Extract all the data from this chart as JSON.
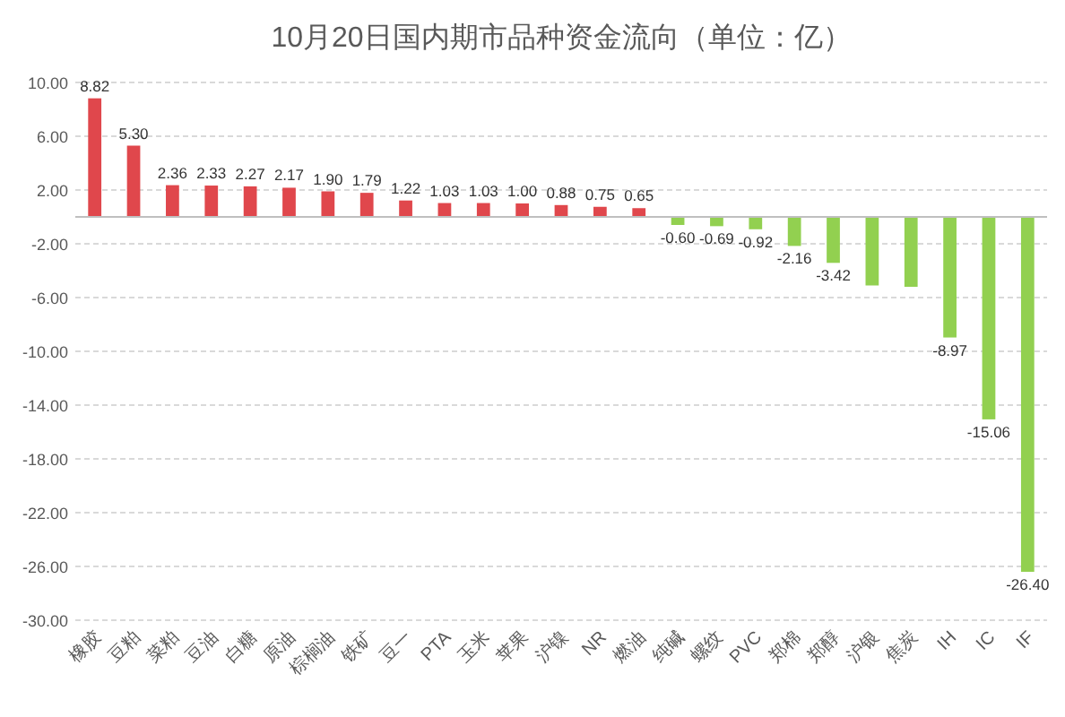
{
  "chart_data": {
    "type": "bar",
    "title": "10月20日国内期市品种资金流向（单位：亿）",
    "categories": [
      "橡胶",
      "豆粕",
      "菜粕",
      "豆油",
      "白糖",
      "原油",
      "棕榈油",
      "铁矿",
      "豆一",
      "PTA",
      "玉米",
      "苹果",
      "沪镍",
      "NR",
      "燃油",
      "纯碱",
      "螺纹",
      "PVC",
      "郑棉",
      "郑醇",
      "沪银",
      "焦炭",
      "IH",
      "IC",
      "IF"
    ],
    "values": [
      8.82,
      5.3,
      2.36,
      2.33,
      2.27,
      2.17,
      1.9,
      1.79,
      1.22,
      1.03,
      1.03,
      1.0,
      0.88,
      0.75,
      0.65,
      -0.6,
      -0.69,
      -0.92,
      -2.16,
      -3.42,
      -5.1,
      -5.2,
      -8.97,
      -15.06,
      -26.4
    ],
    "value_labels": [
      "8.82",
      "5.30",
      "2.36",
      "2.33",
      "2.27",
      "2.17",
      "1.90",
      "1.79",
      "1.22",
      "1.03",
      "1.03",
      "1.00",
      "0.88",
      "0.75",
      "0.65",
      "-0.60",
      "-0.69",
      "-0.92",
      "-2.16",
      "-3.42",
      null,
      null,
      "-8.97",
      "-15.06",
      "-26.40"
    ],
    "colors": [
      "#e0474c",
      "#e0474c",
      "#e0474c",
      "#e0474c",
      "#e0474c",
      "#e0474c",
      "#e0474c",
      "#e0474c",
      "#e0474c",
      "#e0474c",
      "#e0474c",
      "#e0474c",
      "#e0474c",
      "#e0474c",
      "#e0474c",
      "#92d050",
      "#92d050",
      "#92d050",
      "#92d050",
      "#92d050",
      "#92d050",
      "#92d050",
      "#92d050",
      "#92d050",
      "#92d050"
    ],
    "ylim": [
      -30,
      10
    ],
    "yticks": [
      {
        "value": 10,
        "label": "10.00"
      },
      {
        "value": 6,
        "label": "6.00"
      },
      {
        "value": 2,
        "label": "2.00"
      },
      {
        "value": -2,
        "label": "-2.00"
      },
      {
        "value": -6,
        "label": "-6.00"
      },
      {
        "value": -10,
        "label": "-10.00"
      },
      {
        "value": -14,
        "label": "-14.00"
      },
      {
        "value": -18,
        "label": "-18.00"
      },
      {
        "value": -22,
        "label": "-22.00"
      },
      {
        "value": -26,
        "label": "-26.00"
      },
      {
        "value": -30,
        "label": "-30.00"
      }
    ],
    "grid": "y"
  }
}
